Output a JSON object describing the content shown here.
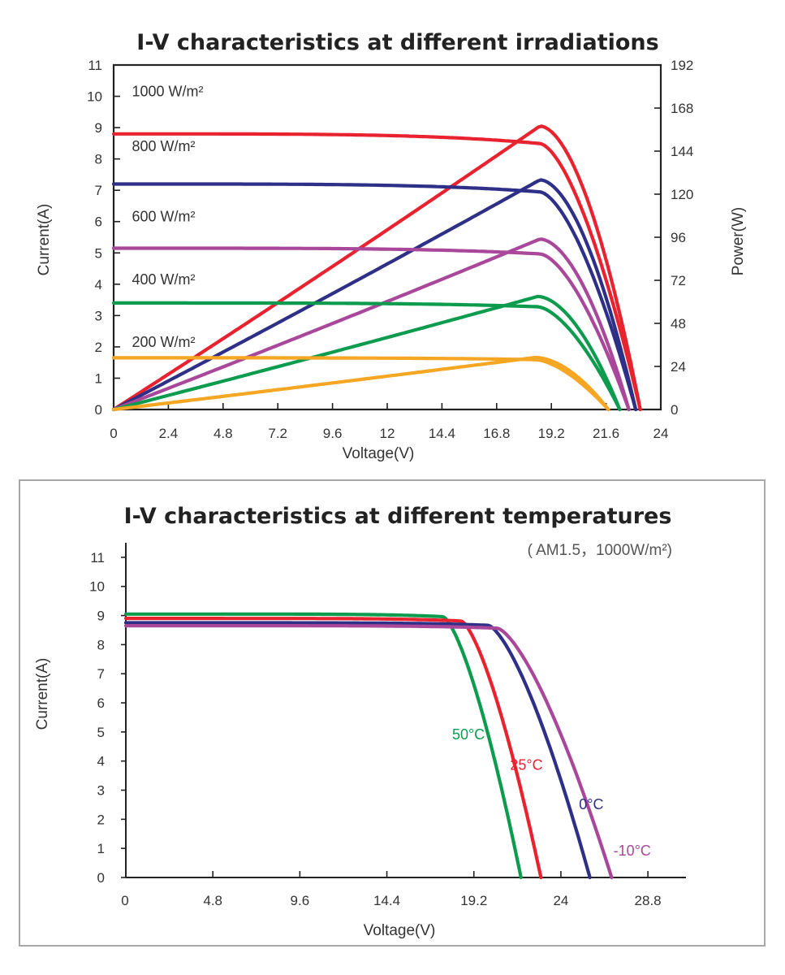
{
  "chart_data": [
    {
      "type": "line",
      "title": "I-V characteristics at different irradiations",
      "xlabel": "Voltage(V)",
      "ylabel": "Current(A)",
      "y2label": "Power(W)",
      "xlim": [
        0,
        24
      ],
      "ylim": [
        0,
        11
      ],
      "y2lim": [
        0,
        192
      ],
      "xticks": [
        "0",
        "2.4",
        "4.8",
        "7.2",
        "9.6",
        "12",
        "14.4",
        "16.8",
        "19.2",
        "21.6",
        "24"
      ],
      "yticks": [
        "0",
        "1",
        "2",
        "3",
        "4",
        "5",
        "6",
        "7",
        "8",
        "9",
        "10",
        "11"
      ],
      "y2ticks": [
        "0",
        "24",
        "48",
        "72",
        "96",
        "120",
        "144",
        "168",
        "192"
      ],
      "series": [
        {
          "name": "1000 W/m²",
          "color": "#e8232f",
          "isc": 8.8,
          "voc": 23.1,
          "pmax": 158,
          "vmp": 18.7
        },
        {
          "name": "800 W/m²",
          "color": "#2e2f86",
          "isc": 7.2,
          "voc": 22.9,
          "pmax": 128,
          "vmp": 18.7
        },
        {
          "name": "600 W/m²",
          "color": "#a9479b",
          "isc": 5.15,
          "voc": 22.6,
          "pmax": 95,
          "vmp": 18.7
        },
        {
          "name": "400 W/m²",
          "color": "#0d9b4d",
          "isc": 3.4,
          "voc": 22.2,
          "pmax": 63,
          "vmp": 18.6
        },
        {
          "name": "200 W/m²",
          "color": "#f5a623",
          "isc": 1.65,
          "voc": 21.7,
          "pmax": 29,
          "vmp": 18.5
        }
      ]
    },
    {
      "type": "line",
      "title": "I-V characteristics at different temperatures",
      "subtitle": "( AM1.5，1000W/m²)",
      "xlabel": "Voltage(V)",
      "ylabel": "Current(A)",
      "xlim": [
        0,
        30.9
      ],
      "ylim": [
        0,
        11.5
      ],
      "xticks": [
        "0",
        "4.8",
        "9.6",
        "14.4",
        "19.2",
        "24",
        "28.8"
      ],
      "yticks": [
        "0",
        "1",
        "2",
        "3",
        "4",
        "5",
        "6",
        "7",
        "8",
        "9",
        "10",
        "11"
      ],
      "series": [
        {
          "name": "50°C",
          "color": "#0d9b4d",
          "isc": 9.05,
          "voc": 21.8,
          "knee_v": 17.5
        },
        {
          "name": "25°C",
          "color": "#e8232f",
          "isc": 8.9,
          "voc": 22.9,
          "knee_v": 18.5
        },
        {
          "name": "0°C",
          "color": "#2e2f86",
          "isc": 8.75,
          "voc": 25.6,
          "knee_v": 20.0
        },
        {
          "name": "-10°C",
          "color": "#a9479b",
          "isc": 8.65,
          "voc": 26.8,
          "knee_v": 20.5
        }
      ]
    }
  ]
}
